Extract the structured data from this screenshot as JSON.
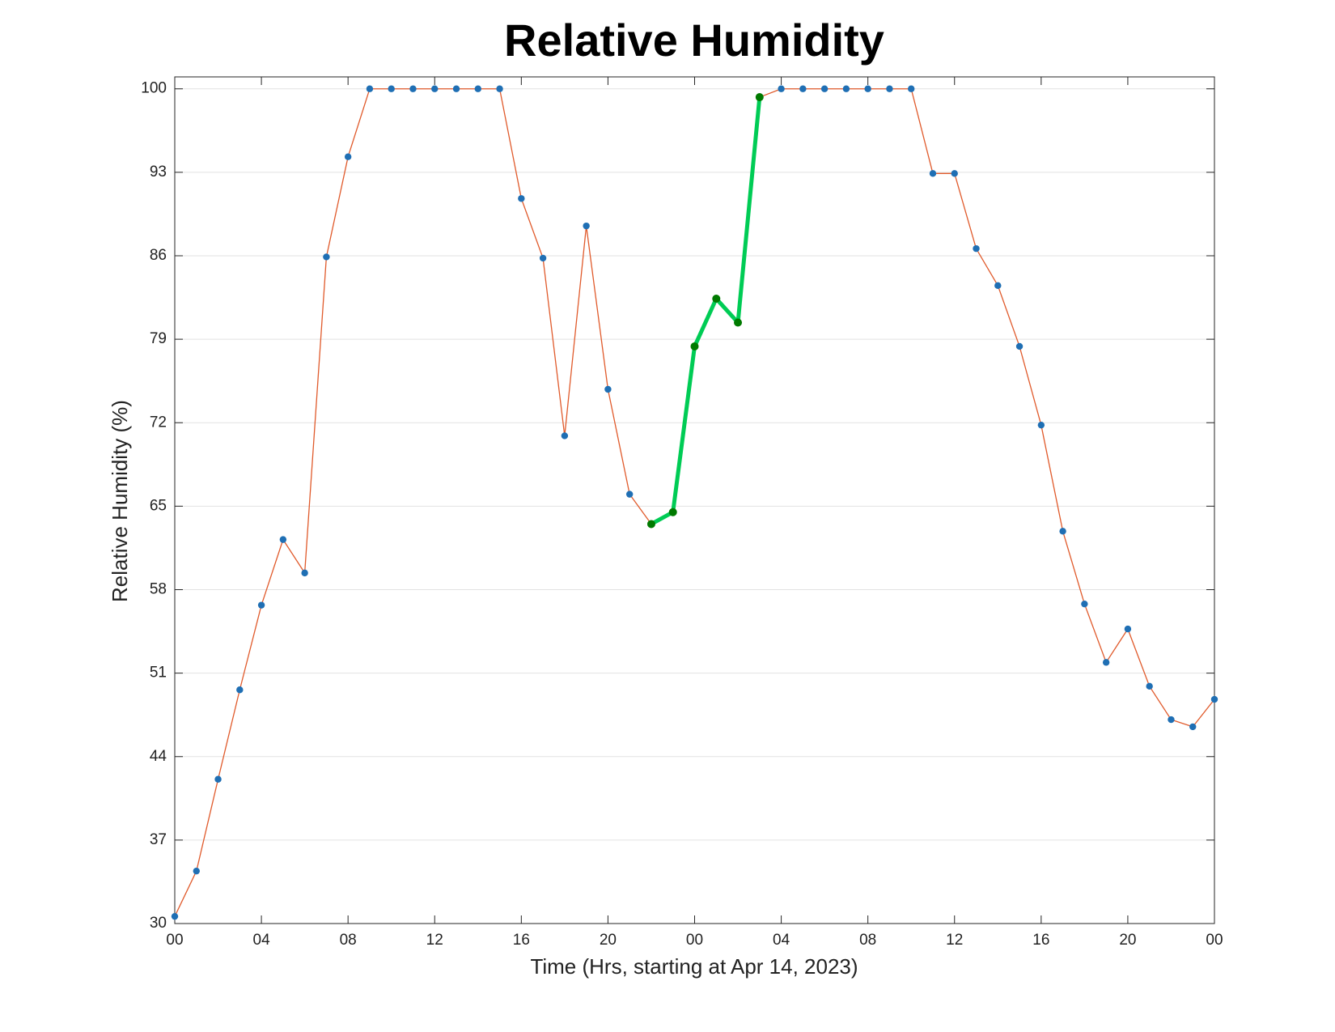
{
  "chart_data": {
    "type": "line",
    "title": "Relative Humidity",
    "xlabel": "Time (Hrs, starting at Apr 14, 2023)",
    "ylabel": "Relative Humidity (%)",
    "x": [
      0,
      1,
      2,
      3,
      4,
      5,
      6,
      7,
      8,
      9,
      10,
      11,
      12,
      13,
      14,
      15,
      16,
      17,
      18,
      19,
      20,
      21,
      22,
      23,
      24,
      25,
      26,
      27,
      28,
      29,
      30,
      31,
      32,
      33,
      34,
      35,
      36,
      37,
      38,
      39,
      40,
      41,
      42,
      43,
      44,
      45,
      46,
      47,
      48
    ],
    "series": [
      {
        "color": "#e05a2b",
        "marker_color": "#1f6fb4",
        "values": [
          30.6,
          34.4,
          42.1,
          49.6,
          56.7,
          62.2,
          59.4,
          85.9,
          94.3,
          100,
          100,
          100,
          100,
          100,
          100,
          100,
          90.8,
          85.8,
          70.9,
          88.5,
          74.8,
          66.0,
          63.5,
          64.5,
          78.4,
          82.4,
          80.4,
          99.3,
          100,
          100,
          100,
          100,
          100,
          100,
          100,
          92.9,
          92.9,
          86.6,
          83.5,
          78.4,
          71.8,
          62.9,
          56.8,
          51.9,
          54.7,
          49.9,
          47.1,
          46.5,
          48.8
        ]
      }
    ],
    "highlight_x": [
      22,
      27
    ],
    "highlight_color": "#00cc55",
    "highlight_marker_color": "#007a00",
    "xlim": [
      0,
      48
    ],
    "xticks": [
      {
        "value": 0,
        "label": "00"
      },
      {
        "value": 4,
        "label": "04"
      },
      {
        "value": 8,
        "label": "08"
      },
      {
        "value": 12,
        "label": "12"
      },
      {
        "value": 16,
        "label": "16"
      },
      {
        "value": 20,
        "label": "20"
      },
      {
        "value": 24,
        "label": "00"
      },
      {
        "value": 28,
        "label": "04"
      },
      {
        "value": 32,
        "label": "08"
      },
      {
        "value": 36,
        "label": "12"
      },
      {
        "value": 40,
        "label": "16"
      },
      {
        "value": 44,
        "label": "20"
      },
      {
        "value": 48,
        "label": "00"
      }
    ],
    "ylim": [
      30,
      101
    ],
    "yticks": [
      30,
      37,
      44,
      51,
      58,
      65,
      72,
      79,
      86,
      93,
      100
    ],
    "grid": true
  }
}
